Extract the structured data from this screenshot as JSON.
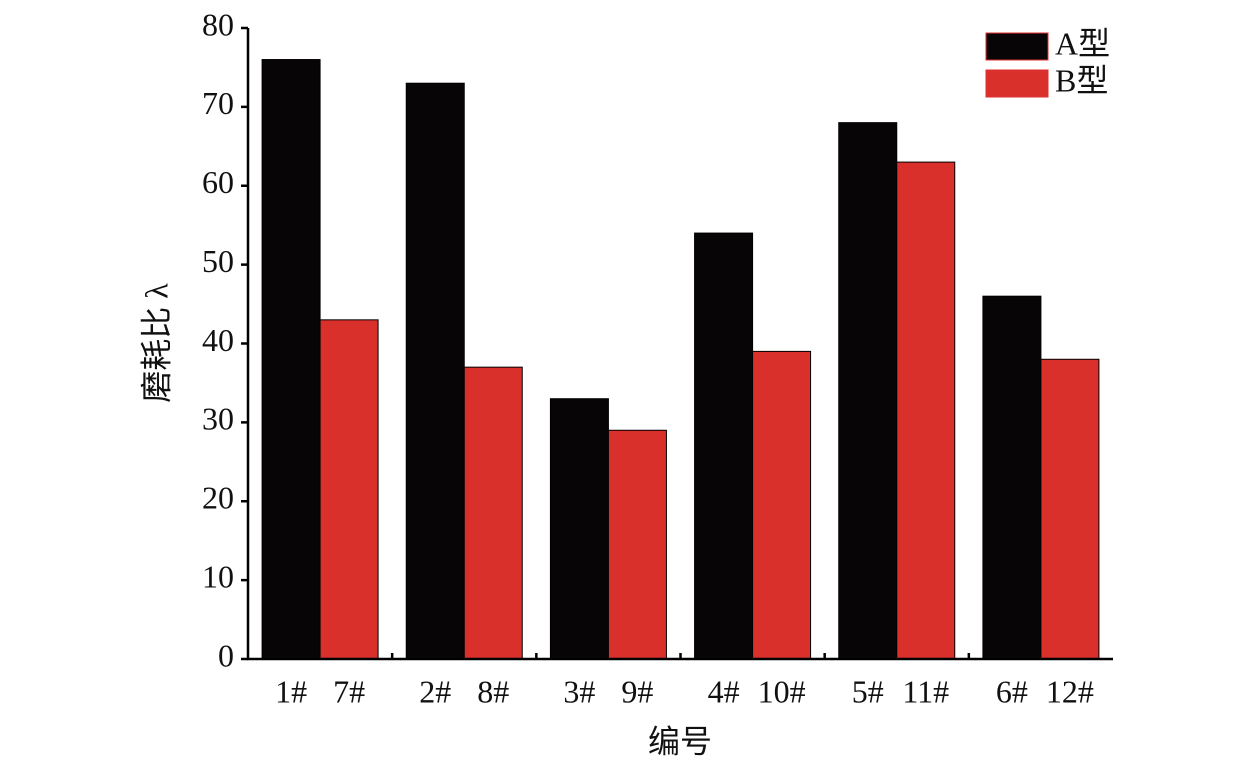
{
  "chart_data": {
    "type": "bar",
    "xlabel": "编号",
    "ylabel": "磨耗比 λ",
    "series": [
      {
        "name": "A型",
        "color": "#080506",
        "labels": [
          "1#",
          "2#",
          "3#",
          "4#",
          "5#",
          "6#"
        ],
        "values": [
          76,
          73,
          33,
          54,
          68,
          46
        ]
      },
      {
        "name": "B型",
        "color": "#d9302b",
        "labels": [
          "7#",
          "8#",
          "9#",
          "10#",
          "11#",
          "12#"
        ],
        "values": [
          43,
          37,
          29,
          39,
          63,
          38
        ]
      }
    ],
    "ylim": [
      0,
      80
    ],
    "yticks": [
      0,
      10,
      20,
      30,
      40,
      50,
      60,
      70,
      80
    ],
    "grid": false,
    "legend": "upper right"
  }
}
